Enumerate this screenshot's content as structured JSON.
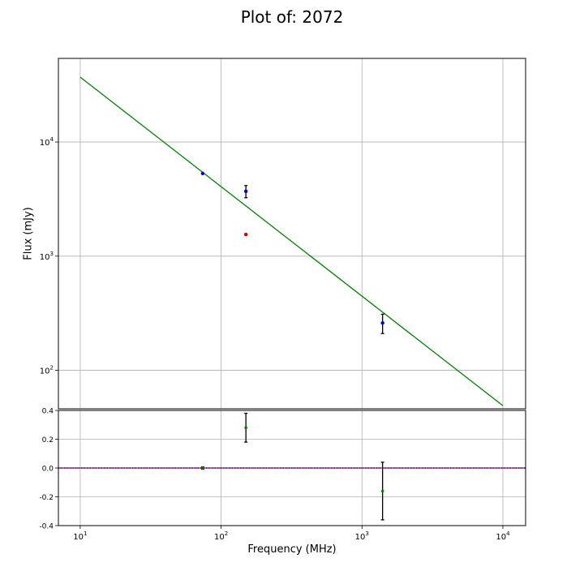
{
  "chart_data": [
    {
      "type": "scatter",
      "panel": "main",
      "title": "Plot of: 2072",
      "ylabel": "Flux (mJy)",
      "xscale": "log",
      "yscale": "log",
      "xlim": [
        7,
        14500
      ],
      "ylim": [
        46,
        54000
      ],
      "grid": true,
      "xticks": [
        10,
        100,
        1000,
        10000
      ],
      "yticks": [
        100,
        1000,
        10000
      ],
      "fit_line": {
        "color": "#008000",
        "x": [
          10,
          10000
        ],
        "y": [
          37000,
          49
        ]
      },
      "series": [
        {
          "color": "#0000cc",
          "x": [
            74,
            150,
            1400
          ],
          "y": [
            5300,
            3700,
            260
          ],
          "yerr": [
            0,
            450,
            50
          ]
        },
        {
          "color": "#cc0000",
          "x": [
            150
          ],
          "y": [
            1550
          ],
          "yerr": [
            0
          ]
        }
      ]
    },
    {
      "type": "scatter",
      "panel": "residuals",
      "xlabel": "Frequency (MHz)",
      "xscale": "log",
      "xlim": [
        7,
        14500
      ],
      "ylim": [
        -0.4,
        0.4
      ],
      "grid": true,
      "yticks": [
        -0.4,
        -0.2,
        0.0,
        0.2,
        0.4
      ],
      "zero_line": {
        "y": 0.0,
        "colors": [
          "#0000cc",
          "#cc0000"
        ]
      },
      "series": [
        {
          "color": "#008000",
          "x": [
            74,
            150,
            1400
          ],
          "y": [
            0.0,
            0.28,
            -0.16
          ],
          "yerr": [
            0.008,
            0.1,
            0.2
          ]
        }
      ]
    }
  ]
}
